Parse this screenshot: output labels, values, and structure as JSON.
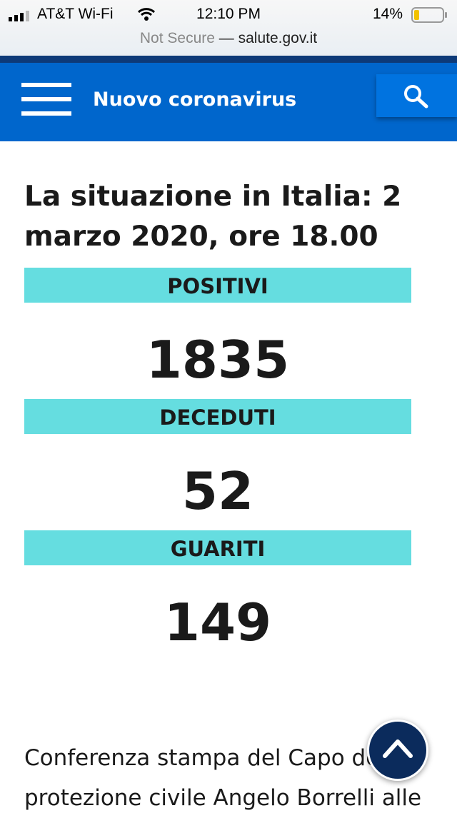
{
  "status_bar": {
    "carrier": "AT&T Wi-Fi",
    "time": "12:10 PM",
    "battery": "14%",
    "security": "Not Secure",
    "domain": "salute.gov.it"
  },
  "header": {
    "title": "Nuovo coronavirus"
  },
  "content": {
    "title": "La situazione in Italia: 2 marzo 2020, ore 18.00",
    "stats": [
      {
        "label": "POSITIVI",
        "value": "1835"
      },
      {
        "label": "DECEDUTI",
        "value": "52"
      },
      {
        "label": "GUARITI",
        "value": "149"
      }
    ],
    "paragraph": "Conferenza stampa del Capo della protezione civile Angelo Borrelli alle"
  }
}
